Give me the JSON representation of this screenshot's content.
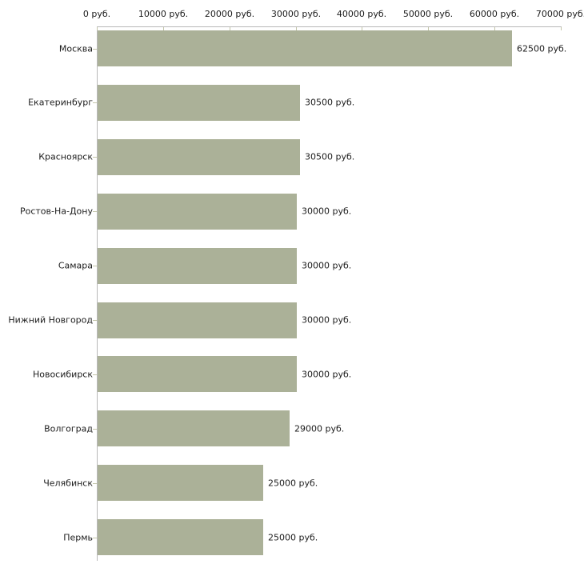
{
  "chart_data": {
    "type": "bar",
    "orientation": "horizontal",
    "title": "",
    "categories": [
      "Москва",
      "Екатеринбург",
      "Красноярск",
      "Ростов-На-Дону",
      "Самара",
      "Нижний Новгород",
      "Новосибирск",
      "Волгоград",
      "Челябинск",
      "Пермь"
    ],
    "values": [
      62500,
      30500,
      30500,
      30000,
      30000,
      30000,
      30000,
      29000,
      25000,
      25000
    ],
    "value_labels": [
      "62500 руб.",
      "30500 руб.",
      "30500 руб.",
      "30000 руб.",
      "30000 руб.",
      "30000 руб.",
      "30000 руб.",
      "29000 руб.",
      "25000 руб.",
      "25000 руб."
    ],
    "x_ticks": [
      0,
      10000,
      20000,
      30000,
      40000,
      50000,
      60000,
      70000
    ],
    "x_tick_labels": [
      "0 руб.",
      "10000 руб.",
      "20000 руб.",
      "30000 руб.",
      "40000 руб.",
      "50000 руб.",
      "60000 руб.",
      "70000 руб."
    ],
    "xlim": [
      0,
      70000
    ],
    "unit": "руб.",
    "grid": false,
    "legend": false,
    "axis_position": "top",
    "bar_color": "#abb198",
    "axis_color": "#b9b9b9",
    "tick_color": "#c3c6aa",
    "text_color": "#1c1c1c",
    "background": "#ffffff"
  }
}
